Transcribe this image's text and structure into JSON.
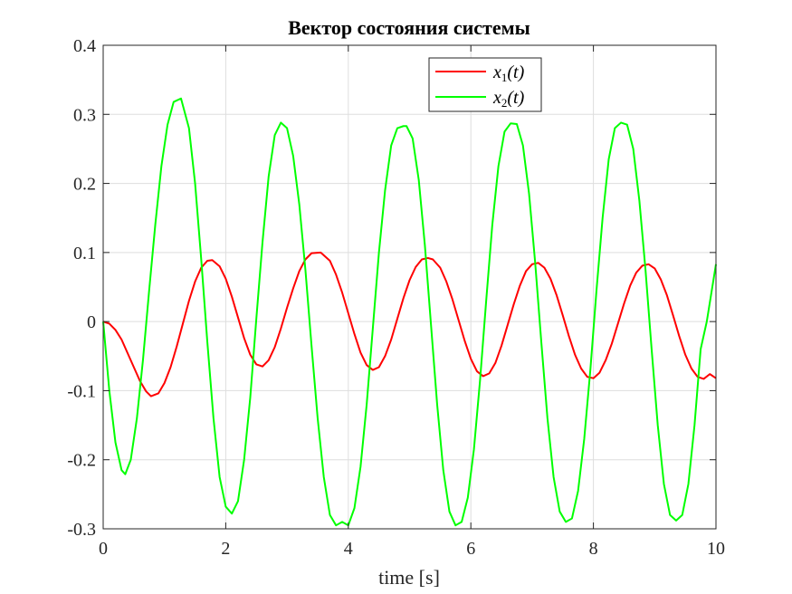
{
  "chart_data": {
    "type": "line",
    "title": "Вектор состояния системы",
    "xlabel": "time [s]",
    "ylabel": "",
    "xlim": [
      0,
      10
    ],
    "ylim": [
      -0.3,
      0.4
    ],
    "xticks": [
      0,
      2,
      4,
      6,
      8,
      10
    ],
    "xtick_labels": [
      "0",
      "2",
      "4",
      "6",
      "8",
      "10"
    ],
    "yticks": [
      -0.3,
      -0.2,
      -0.1,
      0,
      0.1,
      0.2,
      0.3,
      0.4
    ],
    "ytick_labels": [
      "-0.3",
      "-0.2",
      "-0.1",
      "0",
      "0.1",
      "0.2",
      "0.3",
      "0.4"
    ],
    "grid": true,
    "legend_position": "top-right",
    "series": [
      {
        "name": "x1(t)",
        "legend_main": "x",
        "legend_sub": "1",
        "legend_arg": "(t)",
        "color": "#ff0000",
        "x": [
          0,
          0.1,
          0.2,
          0.3,
          0.4,
          0.5,
          0.6,
          0.7,
          0.78,
          0.9,
          1.0,
          1.1,
          1.2,
          1.3,
          1.4,
          1.5,
          1.6,
          1.7,
          1.78,
          1.9,
          2.0,
          2.1,
          2.2,
          2.3,
          2.4,
          2.5,
          2.6,
          2.7,
          2.8,
          2.9,
          3.0,
          3.1,
          3.2,
          3.3,
          3.4,
          3.55,
          3.7,
          3.8,
          3.9,
          4.0,
          4.1,
          4.2,
          4.3,
          4.4,
          4.5,
          4.6,
          4.7,
          4.8,
          4.9,
          5.0,
          5.1,
          5.2,
          5.3,
          5.38,
          5.5,
          5.6,
          5.7,
          5.8,
          5.9,
          6.0,
          6.1,
          6.2,
          6.3,
          6.4,
          6.5,
          6.6,
          6.7,
          6.8,
          6.9,
          7.0,
          7.1,
          7.2,
          7.3,
          7.4,
          7.5,
          7.6,
          7.7,
          7.8,
          7.9,
          8.0,
          8.1,
          8.2,
          8.3,
          8.4,
          8.5,
          8.6,
          8.7,
          8.8,
          8.9,
          9.0,
          9.1,
          9.2,
          9.3,
          9.4,
          9.5,
          9.6,
          9.7,
          9.8,
          9.9,
          10.0
        ],
        "values": [
          0,
          -0.003,
          -0.012,
          -0.026,
          -0.046,
          -0.066,
          -0.086,
          -0.101,
          -0.108,
          -0.104,
          -0.089,
          -0.066,
          -0.036,
          -0.003,
          0.03,
          0.058,
          0.078,
          0.088,
          0.089,
          0.08,
          0.062,
          0.036,
          0.006,
          -0.024,
          -0.048,
          -0.062,
          -0.065,
          -0.056,
          -0.037,
          -0.01,
          0.02,
          0.048,
          0.073,
          0.09,
          0.099,
          0.1,
          0.088,
          0.068,
          0.042,
          0.012,
          -0.018,
          -0.045,
          -0.063,
          -0.07,
          -0.066,
          -0.05,
          -0.026,
          0.004,
          0.034,
          0.06,
          0.079,
          0.09,
          0.092,
          0.09,
          0.078,
          0.058,
          0.032,
          0.002,
          -0.028,
          -0.054,
          -0.072,
          -0.079,
          -0.075,
          -0.06,
          -0.035,
          -0.005,
          0.025,
          0.052,
          0.073,
          0.083,
          0.085,
          0.078,
          0.062,
          0.038,
          0.009,
          -0.021,
          -0.048,
          -0.068,
          -0.08,
          -0.082,
          -0.074,
          -0.056,
          -0.032,
          -0.003,
          0.026,
          0.052,
          0.071,
          0.081,
          0.083,
          0.077,
          0.061,
          0.038,
          0.009,
          -0.021,
          -0.048,
          -0.068,
          -0.08,
          -0.083,
          -0.076,
          -0.082
        ]
      },
      {
        "name": "x2(t)",
        "legend_main": "x",
        "legend_sub": "2",
        "legend_arg": "(t)",
        "color": "#00ff00",
        "x": [
          0,
          0.1,
          0.2,
          0.3,
          0.36,
          0.45,
          0.55,
          0.65,
          0.75,
          0.85,
          0.95,
          1.05,
          1.15,
          1.27,
          1.4,
          1.5,
          1.6,
          1.7,
          1.8,
          1.9,
          2.0,
          2.1,
          2.2,
          2.3,
          2.4,
          2.5,
          2.6,
          2.7,
          2.8,
          2.9,
          3.0,
          3.1,
          3.2,
          3.3,
          3.4,
          3.5,
          3.6,
          3.7,
          3.8,
          3.9,
          4.0,
          4.1,
          4.2,
          4.3,
          4.4,
          4.5,
          4.6,
          4.7,
          4.8,
          4.9,
          4.95,
          5.05,
          5.15,
          5.25,
          5.35,
          5.45,
          5.55,
          5.65,
          5.75,
          5.85,
          5.95,
          6.05,
          6.15,
          6.25,
          6.35,
          6.45,
          6.55,
          6.65,
          6.75,
          6.85,
          6.95,
          7.05,
          7.15,
          7.25,
          7.35,
          7.45,
          7.55,
          7.65,
          7.75,
          7.85,
          7.95,
          8.05,
          8.15,
          8.25,
          8.35,
          8.45,
          8.55,
          8.65,
          8.75,
          8.85,
          8.95,
          9.05,
          9.15,
          9.25,
          9.35,
          9.45,
          9.55,
          9.65,
          9.75,
          9.85,
          10.0
        ],
        "values": [
          0,
          -0.1,
          -0.175,
          -0.215,
          -0.221,
          -0.2,
          -0.14,
          -0.055,
          0.045,
          0.14,
          0.225,
          0.285,
          0.318,
          0.323,
          0.28,
          0.2,
          0.09,
          -0.03,
          -0.14,
          -0.225,
          -0.268,
          -0.278,
          -0.26,
          -0.2,
          -0.11,
          0.005,
          0.115,
          0.21,
          0.27,
          0.288,
          0.28,
          0.24,
          0.17,
          0.075,
          -0.035,
          -0.14,
          -0.225,
          -0.28,
          -0.295,
          -0.29,
          -0.295,
          -0.27,
          -0.21,
          -0.12,
          -0.01,
          0.1,
          0.19,
          0.255,
          0.28,
          0.283,
          0.283,
          0.265,
          0.205,
          0.11,
          -0.005,
          -0.12,
          -0.215,
          -0.275,
          -0.295,
          -0.29,
          -0.255,
          -0.185,
          -0.085,
          0.03,
          0.14,
          0.225,
          0.275,
          0.287,
          0.286,
          0.255,
          0.185,
          0.085,
          -0.03,
          -0.14,
          -0.225,
          -0.275,
          -0.29,
          -0.285,
          -0.245,
          -0.17,
          -0.07,
          0.045,
          0.15,
          0.235,
          0.28,
          0.288,
          0.285,
          0.25,
          0.175,
          0.075,
          -0.04,
          -0.15,
          -0.235,
          -0.28,
          -0.288,
          -0.28,
          -0.235,
          -0.15,
          -0.04,
          0.0,
          0.083
        ]
      }
    ]
  }
}
